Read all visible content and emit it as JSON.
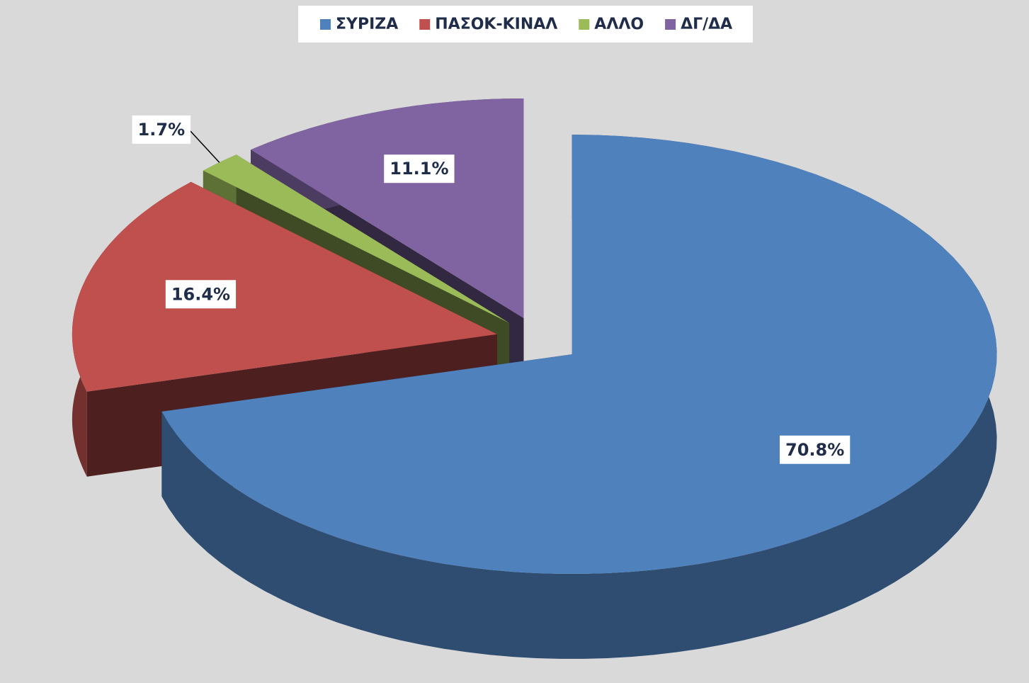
{
  "chart_data": {
    "type": "pie",
    "categories": [
      "ΣΥΡΙΖΑ",
      "ΠΑΣΟΚ-ΚΙΝΑΛ",
      "ΑΛΛΟ",
      "ΔΓ/ΔΑ"
    ],
    "values": [
      70.8,
      16.4,
      1.7,
      11.1
    ],
    "value_labels": [
      "70.8%",
      "16.4%",
      "1.7%",
      "11.1%"
    ],
    "colors": [
      "#4f81bd",
      "#c0504d",
      "#9bbb59",
      "#8064a2"
    ],
    "legend": "top"
  }
}
